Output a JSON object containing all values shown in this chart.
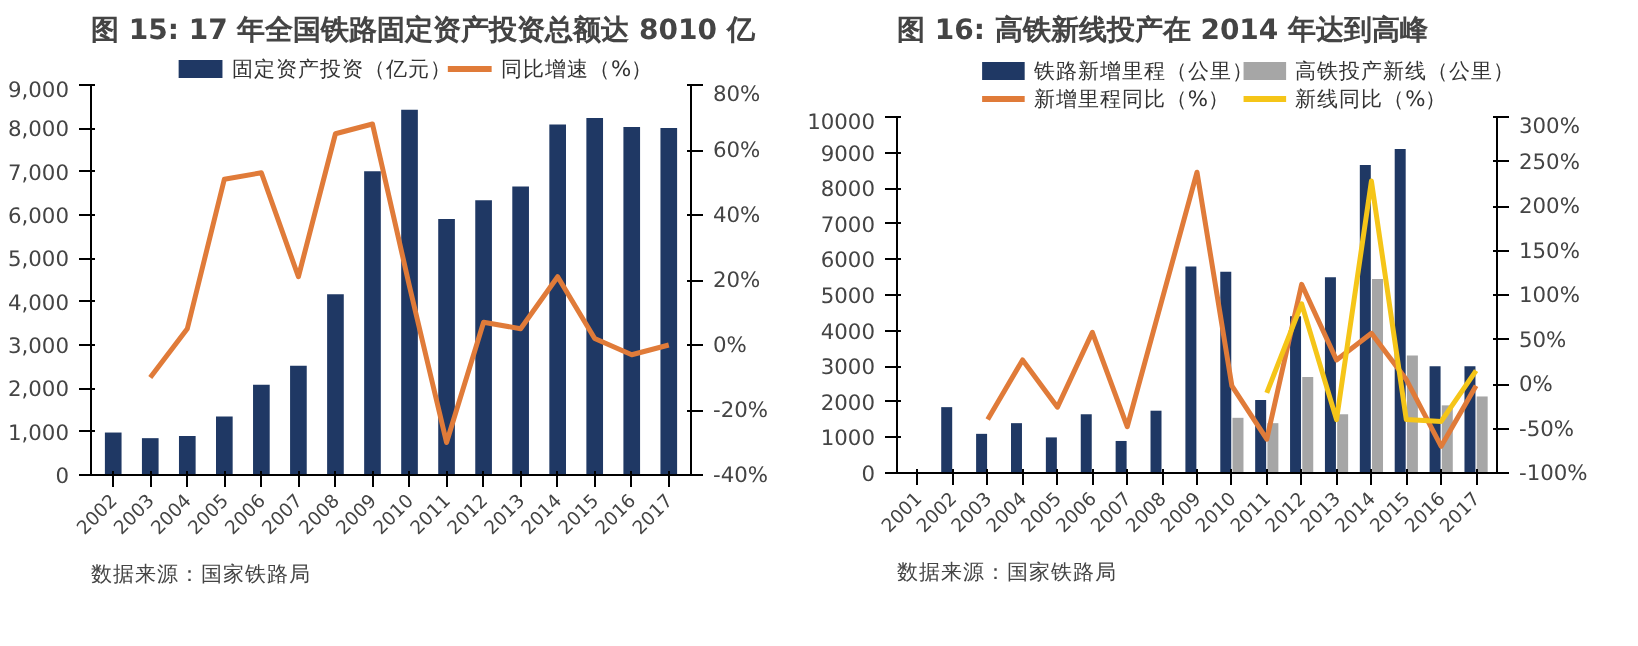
{
  "chart_data": [
    {
      "type": "bar",
      "title": "图 15:  17 年全国铁路固定资产投资总额达 8010 亿",
      "annotations": [
        "数据来源：国家铁路局"
      ],
      "categories": [
        "2002",
        "2003",
        "2004",
        "2005",
        "2006",
        "2007",
        "2008",
        "2009",
        "2010",
        "2011",
        "2012",
        "2013",
        "2014",
        "2015",
        "2016",
        "2017"
      ],
      "series": [
        {
          "name": "固定资产投资（亿元）",
          "color": "#1f3864",
          "values": [
            980,
            850,
            900,
            1350,
            2080,
            2520,
            4170,
            7010,
            8430,
            5910,
            6340,
            6660,
            8090,
            8240,
            8030,
            8010
          ]
        },
        {
          "name": "同比增速（%）",
          "type": "line",
          "axis": "y2",
          "color": "#e07b39",
          "values": [
            null,
            -10,
            5,
            51,
            53,
            21,
            65,
            68,
            18,
            -30,
            7,
            5,
            21,
            2,
            -3,
            0
          ]
        }
      ],
      "ylim": [
        0,
        9000
      ],
      "yticks": [
        {
          "value": 0,
          "label": "0"
        },
        {
          "value": 1000,
          "label": "1,000"
        },
        {
          "value": 2000,
          "label": "2,000"
        },
        {
          "value": 3000,
          "label": "3,000"
        },
        {
          "value": 4000,
          "label": "4,000"
        },
        {
          "value": 5000,
          "label": "5,000"
        },
        {
          "value": 6000,
          "label": "6,000"
        },
        {
          "value": 7000,
          "label": "7,000"
        },
        {
          "value": 8000,
          "label": "8,000"
        },
        {
          "value": 9000,
          "label": "9,000"
        }
      ],
      "y2lim": [
        -40,
        80
      ],
      "y2ticks": [
        {
          "value": -40,
          "label": "-40%"
        },
        {
          "value": -20,
          "label": "-20%"
        },
        {
          "value": 0,
          "label": "0%"
        },
        {
          "value": 20,
          "label": "20%"
        },
        {
          "value": 40,
          "label": "40%"
        },
        {
          "value": 60,
          "label": "60%"
        },
        {
          "value": 80,
          "label": "80%"
        }
      ],
      "grid": false,
      "legend": "top",
      "line_style": "solid",
      "marker": "none"
    },
    {
      "type": "bar",
      "title": "图 16:  高铁新线投产在 2014 年达到高峰",
      "annotations": [
        "数据来源：国家铁路局"
      ],
      "categories": [
        "2001",
        "2002",
        "2003",
        "2004",
        "2005",
        "2006",
        "2007",
        "2008",
        "2009",
        "2010",
        "2011",
        "2012",
        "2013",
        "2014",
        "2015",
        "2016",
        "2017"
      ],
      "series": [
        {
          "name": "铁路新增里程（公里）",
          "color": "#1f3864",
          "values": [
            null,
            1850,
            1100,
            1400,
            1000,
            1650,
            900,
            1750,
            5800,
            5650,
            2050,
            4400,
            5500,
            8650,
            9100,
            3000,
            3000
          ]
        },
        {
          "name": "高铁投产新线（公里）",
          "color": "#a6a6a6",
          "values": [
            null,
            null,
            null,
            null,
            null,
            null,
            null,
            null,
            null,
            1550,
            1400,
            2700,
            1650,
            5450,
            3300,
            1900,
            2150
          ]
        },
        {
          "name": "新增里程同比（%）",
          "type": "line",
          "axis": "y2",
          "color": "#e07b39",
          "values": [
            null,
            null,
            -40,
            27,
            -26,
            58,
            -48,
            95,
            238,
            -2,
            -62,
            112,
            27,
            57,
            5,
            -70,
            -2
          ]
        },
        {
          "name": "新线同比（%）",
          "type": "line",
          "axis": "y2",
          "color": "#f5c518",
          "values": [
            null,
            null,
            null,
            null,
            null,
            null,
            null,
            null,
            null,
            null,
            -10,
            90,
            -40,
            228,
            -40,
            -42,
            15
          ]
        }
      ],
      "ylim": [
        0,
        10000
      ],
      "yticks": [
        0,
        1000,
        2000,
        3000,
        4000,
        5000,
        6000,
        7000,
        8000,
        9000,
        10000
      ],
      "y2lim": [
        -100,
        300
      ],
      "y2ticks": [
        {
          "value": -100,
          "label": "-100%"
        },
        {
          "value": -50,
          "label": "-50%"
        },
        {
          "value": 0,
          "label": "0%"
        },
        {
          "value": 50,
          "label": "50%"
        },
        {
          "value": 100,
          "label": "100%"
        },
        {
          "value": 150,
          "label": "150%"
        },
        {
          "value": 200,
          "label": "200%"
        },
        {
          "value": 250,
          "label": "250%"
        },
        {
          "value": 300,
          "label": "300%"
        }
      ],
      "grid": false,
      "legend": "top",
      "line_style": "solid",
      "marker": "none"
    }
  ]
}
